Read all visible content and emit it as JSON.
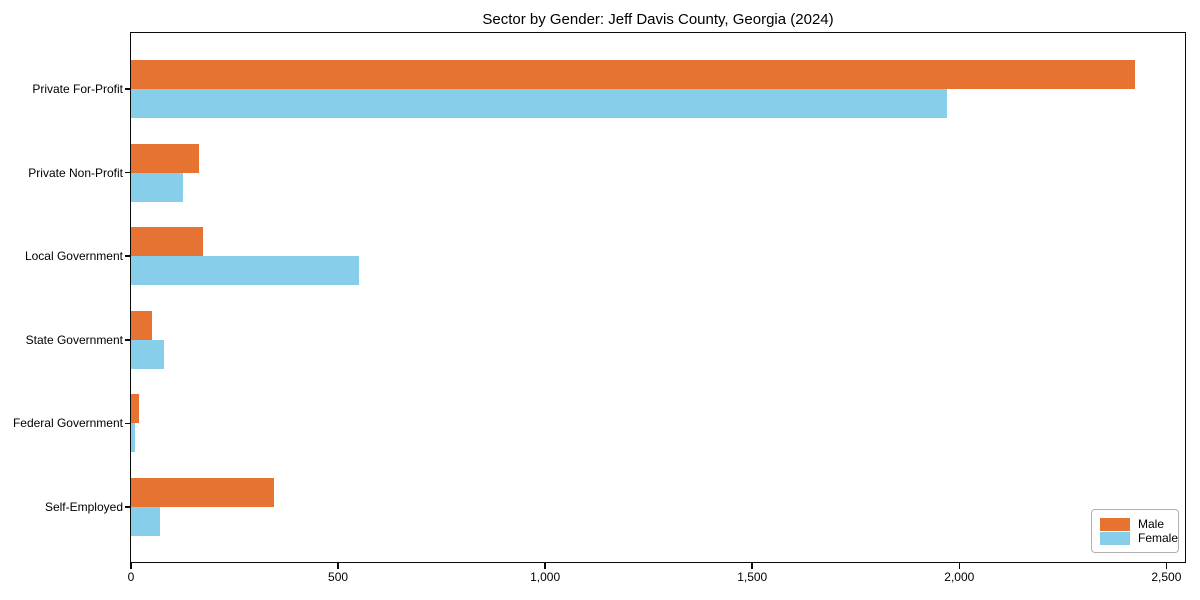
{
  "chart_data": {
    "type": "bar",
    "orientation": "horizontal",
    "title": "Sector by Gender: Jeff Davis County, Georgia (2024)",
    "categories": [
      "Private For-Profit",
      "Private Non-Profit",
      "Local Government",
      "State Government",
      "Federal Government",
      "Self-Employed"
    ],
    "series": [
      {
        "name": "Male",
        "color": "#e67332",
        "values": [
          2425,
          165,
          175,
          50,
          20,
          345
        ]
      },
      {
        "name": "Female",
        "color": "#87ceeb",
        "values": [
          1970,
          125,
          550,
          80,
          10,
          70
        ]
      }
    ],
    "xlabel": "",
    "ylabel": "",
    "xlim": [
      0,
      2545
    ],
    "xticks": [
      0,
      500,
      1000,
      1500,
      2000,
      2500
    ],
    "xtick_labels": [
      "0",
      "500",
      "1,000",
      "1,500",
      "2,000",
      "2,500"
    ],
    "grid": false,
    "legend": {
      "position": "lower-right",
      "entries": [
        "Male",
        "Female"
      ]
    },
    "axis_color": "#0a0a0a",
    "background_color": "#ffffff"
  }
}
